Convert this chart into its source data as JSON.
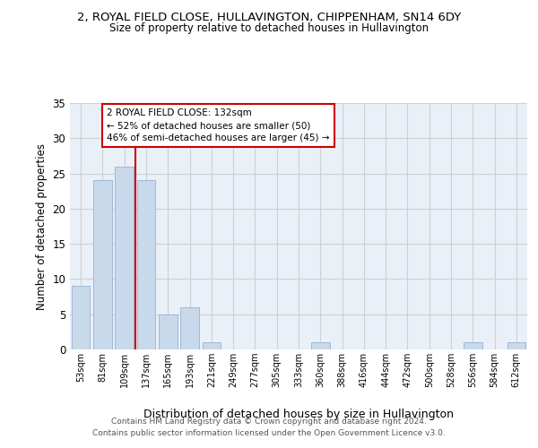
{
  "title_line1": "2, ROYAL FIELD CLOSE, HULLAVINGTON, CHIPPENHAM, SN14 6DY",
  "title_line2": "Size of property relative to detached houses in Hullavington",
  "xlabel": "Distribution of detached houses by size in Hullavington",
  "ylabel": "Number of detached properties",
  "bin_labels": [
    "53sqm",
    "81sqm",
    "109sqm",
    "137sqm",
    "165sqm",
    "193sqm",
    "221sqm",
    "249sqm",
    "277sqm",
    "305sqm",
    "333sqm",
    "360sqm",
    "388sqm",
    "416sqm",
    "444sqm",
    "472sqm",
    "500sqm",
    "528sqm",
    "556sqm",
    "584sqm",
    "612sqm"
  ],
  "bar_values": [
    9,
    24,
    26,
    24,
    5,
    6,
    1,
    0,
    0,
    0,
    0,
    1,
    0,
    0,
    0,
    0,
    0,
    0,
    1,
    0,
    1
  ],
  "bar_color": "#c9d9ec",
  "bar_edgecolor": "#a0b8d8",
  "vline_pos": 2.5,
  "vline_color": "#cc0000",
  "annotation_text": "2 ROYAL FIELD CLOSE: 132sqm\n← 52% of detached houses are smaller (50)\n46% of semi-detached houses are larger (45) →",
  "annotation_box_color": "#ffffff",
  "annotation_box_edgecolor": "#cc0000",
  "ylim": [
    0,
    35
  ],
  "yticks": [
    0,
    5,
    10,
    15,
    20,
    25,
    30,
    35
  ],
  "footer_line1": "Contains HM Land Registry data © Crown copyright and database right 2024.",
  "footer_line2": "Contains public sector information licensed under the Open Government Licence v3.0.",
  "background_color": "#ffffff",
  "plot_bg_color": "#eaf0f8",
  "grid_color": "#d0d0d0"
}
